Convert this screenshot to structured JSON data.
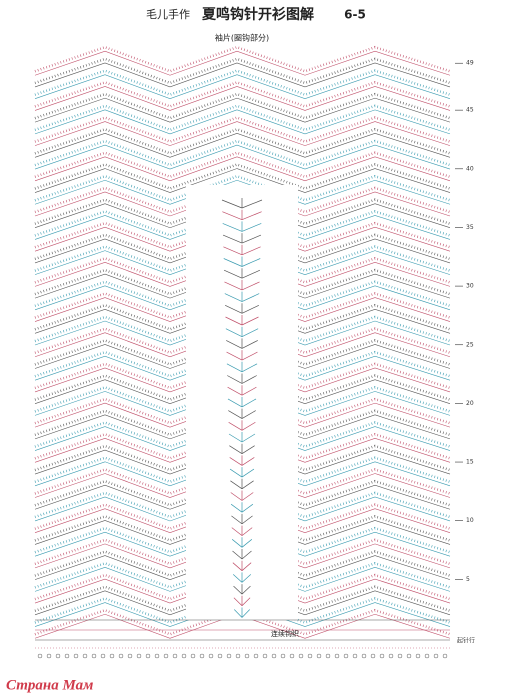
{
  "header": {
    "brand": "毛儿手作",
    "title": "夏鸣钩针开衫图解",
    "page": "6-5",
    "subtitle": "袖片(圈钩部分)"
  },
  "row_labels": [
    "49",
    "45",
    "40",
    "35",
    "30",
    "25",
    "20",
    "15",
    "10",
    "5"
  ],
  "notes": {
    "join": "连续钩织",
    "start": "起针行"
  },
  "watermark": "Страна Мам"
}
